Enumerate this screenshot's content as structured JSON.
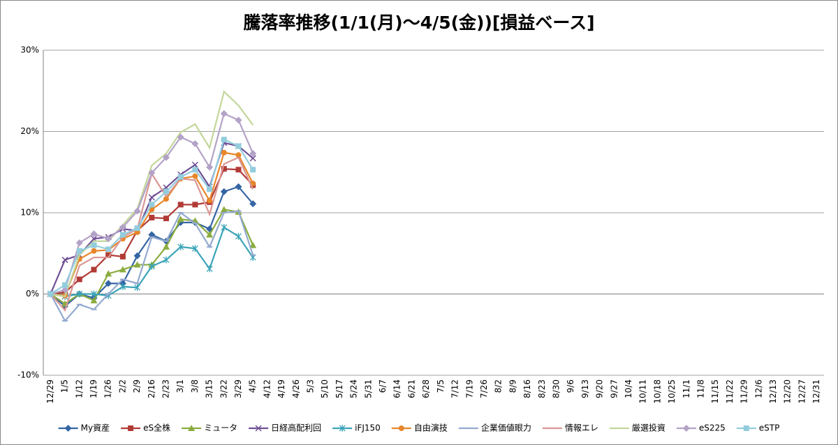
{
  "chart_data": {
    "type": "line",
    "title": "騰落率推移(1/1(月)～4/5(金))[損益ベース]",
    "categories": [
      "12/29",
      "1/5",
      "1/12",
      "1/19",
      "1/26",
      "2/2",
      "2/9",
      "2/16",
      "2/23",
      "3/1",
      "3/8",
      "3/15",
      "3/22",
      "3/29",
      "4/5",
      "4/12",
      "4/19",
      "4/26",
      "5/3",
      "5/10",
      "5/17",
      "5/24",
      "5/31",
      "6/7",
      "6/14",
      "6/21",
      "6/28",
      "7/5",
      "7/12",
      "7/19",
      "7/26",
      "8/2",
      "8/9",
      "8/16",
      "8/23",
      "8/30",
      "9/6",
      "9/13",
      "9/20",
      "9/27",
      "10/4",
      "10/11",
      "10/18",
      "10/25",
      "11/1",
      "11/8",
      "11/15",
      "11/22",
      "11/29",
      "12/6",
      "12/13",
      "12/20",
      "12/27",
      "12/31"
    ],
    "ylim": [
      -10,
      30
    ],
    "yticks": [
      {
        "value": -10,
        "label": "-10%"
      },
      {
        "value": 0,
        "label": "0%"
      },
      {
        "value": 10,
        "label": "10%"
      },
      {
        "value": 20,
        "label": "20%"
      },
      {
        "value": 30,
        "label": "30%"
      }
    ],
    "grid": true,
    "legend": "bottom",
    "series": [
      {
        "name": "My資産",
        "color": "#3465a4",
        "marker": "diamond",
        "values": [
          0,
          -1.5,
          0,
          -0.5,
          1.3,
          1.3,
          4.7,
          7.3,
          6.5,
          8.8,
          8.8,
          8.0,
          12.6,
          13.2,
          11.1,
          null,
          null,
          null,
          null,
          null,
          null,
          null,
          null,
          null,
          null,
          null,
          null,
          null,
          null,
          null,
          null,
          null,
          null,
          null,
          null,
          null,
          null,
          null,
          null,
          null,
          null,
          null,
          null,
          null,
          null,
          null,
          null,
          null,
          null,
          null,
          null,
          null,
          null,
          null
        ]
      },
      {
        "name": "eS全株",
        "color": "#b23a36",
        "marker": "square",
        "values": [
          0,
          0.2,
          1.8,
          3.0,
          4.8,
          4.6,
          7.8,
          9.4,
          9.3,
          11.0,
          11.0,
          11.3,
          15.4,
          15.3,
          13.4,
          null,
          null,
          null,
          null,
          null,
          null,
          null,
          null,
          null,
          null,
          null,
          null,
          null,
          null,
          null,
          null,
          null,
          null,
          null,
          null,
          null,
          null,
          null,
          null,
          null,
          null,
          null,
          null,
          null,
          null,
          null,
          null,
          null,
          null,
          null,
          null,
          null,
          null,
          null
        ]
      },
      {
        "name": "ミュータ",
        "color": "#8aac3e",
        "marker": "triangle",
        "values": [
          0,
          -1.2,
          0,
          -0.8,
          2.5,
          3.0,
          3.6,
          3.6,
          5.8,
          9.2,
          9.0,
          7.3,
          10.4,
          10.1,
          6.0,
          null,
          null,
          null,
          null,
          null,
          null,
          null,
          null,
          null,
          null,
          null,
          null,
          null,
          null,
          null,
          null,
          null,
          null,
          null,
          null,
          null,
          null,
          null,
          null,
          null,
          null,
          null,
          null,
          null,
          null,
          null,
          null,
          null,
          null,
          null,
          null,
          null,
          null,
          null
        ]
      },
      {
        "name": "日経高配利回",
        "color": "#6f4f95",
        "marker": "x",
        "values": [
          0,
          4.2,
          4.8,
          6.8,
          7.0,
          8.0,
          7.8,
          11.9,
          13.1,
          14.7,
          15.9,
          13.2,
          18.6,
          18.2,
          16.7,
          null,
          null,
          null,
          null,
          null,
          null,
          null,
          null,
          null,
          null,
          null,
          null,
          null,
          null,
          null,
          null,
          null,
          null,
          null,
          null,
          null,
          null,
          null,
          null,
          null,
          null,
          null,
          null,
          null,
          null,
          null,
          null,
          null,
          null,
          null,
          null,
          null,
          null,
          null
        ]
      },
      {
        "name": "iFJ150",
        "color": "#3ba4b8",
        "marker": "star",
        "values": [
          0,
          -0.3,
          0,
          0,
          -0.2,
          0.9,
          0.8,
          3.4,
          4.2,
          5.8,
          5.6,
          3.1,
          8.2,
          7.1,
          4.5,
          null,
          null,
          null,
          null,
          null,
          null,
          null,
          null,
          null,
          null,
          null,
          null,
          null,
          null,
          null,
          null,
          null,
          null,
          null,
          null,
          null,
          null,
          null,
          null,
          null,
          null,
          null,
          null,
          null,
          null,
          null,
          null,
          null,
          null,
          null,
          null,
          null,
          null,
          null
        ]
      },
      {
        "name": "自由演技",
        "color": "#e8862a",
        "marker": "circle",
        "values": [
          0,
          -0.2,
          4.3,
          5.3,
          5.4,
          6.8,
          7.6,
          10.4,
          11.7,
          14.2,
          14.5,
          11.5,
          17.4,
          17.1,
          13.6,
          null,
          null,
          null,
          null,
          null,
          null,
          null,
          null,
          null,
          null,
          null,
          null,
          null,
          null,
          null,
          null,
          null,
          null,
          null,
          null,
          null,
          null,
          null,
          null,
          null,
          null,
          null,
          null,
          null,
          null,
          null,
          null,
          null,
          null,
          null,
          null,
          null,
          null,
          null
        ]
      },
      {
        "name": "企業価値眼力",
        "color": "#93a9d0",
        "marker": "dash",
        "values": [
          0,
          -3.3,
          -1.3,
          -1.9,
          0,
          1.8,
          1.3,
          7.0,
          6.5,
          10.0,
          8.7,
          5.8,
          10.0,
          10.2,
          4.8,
          null,
          null,
          null,
          null,
          null,
          null,
          null,
          null,
          null,
          null,
          null,
          null,
          null,
          null,
          null,
          null,
          null,
          null,
          null,
          null,
          null,
          null,
          null,
          null,
          null,
          null,
          null,
          null,
          null,
          null,
          null,
          null,
          null,
          null,
          null,
          null,
          null,
          null,
          null
        ]
      },
      {
        "name": "情報エレ",
        "color": "#d99694",
        "marker": "none",
        "values": [
          0,
          -2.0,
          3.5,
          4.5,
          4.5,
          7.0,
          8.0,
          14.8,
          12.0,
          14.2,
          14.0,
          9.8,
          16.0,
          16.8,
          12.9,
          null,
          null,
          null,
          null,
          null,
          null,
          null,
          null,
          null,
          null,
          null,
          null,
          null,
          null,
          null,
          null,
          null,
          null,
          null,
          null,
          null,
          null,
          null,
          null,
          null,
          null,
          null,
          null,
          null,
          null,
          null,
          null,
          null,
          null,
          null,
          null,
          null,
          null,
          null
        ]
      },
      {
        "name": "厳選投資",
        "color": "#c3d69b",
        "marker": "none",
        "values": [
          0,
          -0.3,
          4.8,
          6.5,
          6.5,
          8.5,
          10.5,
          15.8,
          17.3,
          19.9,
          20.9,
          18.0,
          24.9,
          23.2,
          20.8,
          null,
          null,
          null,
          null,
          null,
          null,
          null,
          null,
          null,
          null,
          null,
          null,
          null,
          null,
          null,
          null,
          null,
          null,
          null,
          null,
          null,
          null,
          null,
          null,
          null,
          null,
          null,
          null,
          null,
          null,
          null,
          null,
          null,
          null,
          null,
          null,
          null,
          null,
          null
        ]
      },
      {
        "name": "eS225",
        "color": "#b3a2c7",
        "marker": "diamond",
        "values": [
          0,
          0.5,
          6.3,
          7.4,
          6.8,
          8.2,
          10.2,
          14.9,
          16.8,
          19.3,
          18.5,
          15.6,
          22.2,
          21.4,
          17.3,
          null,
          null,
          null,
          null,
          null,
          null,
          null,
          null,
          null,
          null,
          null,
          null,
          null,
          null,
          null,
          null,
          null,
          null,
          null,
          null,
          null,
          null,
          null,
          null,
          null,
          null,
          null,
          null,
          null,
          null,
          null,
          null,
          null,
          null,
          null,
          null,
          null,
          null,
          null
        ]
      },
      {
        "name": "eSTP",
        "color": "#93cddd",
        "marker": "square",
        "values": [
          0,
          1.1,
          5.3,
          6.0,
          5.5,
          7.3,
          8.1,
          11.0,
          12.6,
          14.4,
          15.3,
          12.9,
          19.0,
          18.2,
          15.3,
          null,
          null,
          null,
          null,
          null,
          null,
          null,
          null,
          null,
          null,
          null,
          null,
          null,
          null,
          null,
          null,
          null,
          null,
          null,
          null,
          null,
          null,
          null,
          null,
          null,
          null,
          null,
          null,
          null,
          null,
          null,
          null,
          null,
          null,
          null,
          null,
          null,
          null,
          null
        ]
      }
    ]
  }
}
